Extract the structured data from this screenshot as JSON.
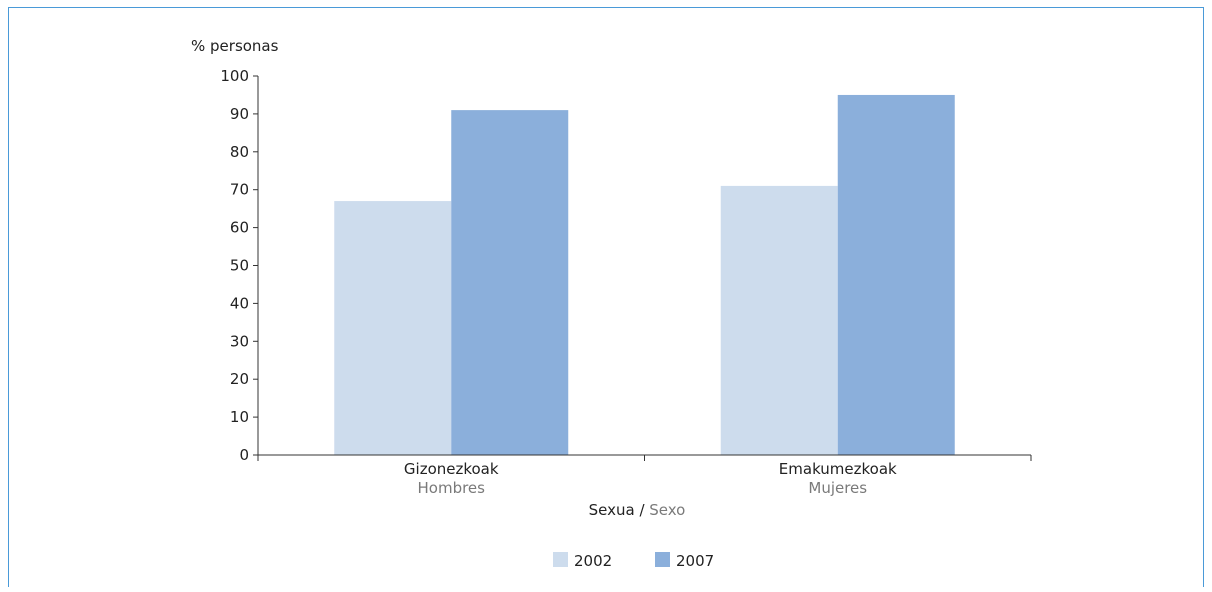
{
  "chart_data": {
    "type": "bar",
    "ylabel": "% personas",
    "ylim": [
      0,
      100
    ],
    "yticks": [
      0,
      10,
      20,
      30,
      40,
      50,
      60,
      70,
      80,
      90,
      100
    ],
    "categories": [
      {
        "primary": "Gizonezkoak",
        "secondary": "Hombres"
      },
      {
        "primary": "Emakumezkoak",
        "secondary": "Mujeres"
      }
    ],
    "xlabel": {
      "primary": "Sexua",
      "separator": " / ",
      "secondary": "Sexo"
    },
    "series": [
      {
        "name": "2002",
        "color": "#cddced",
        "values": [
          67,
          71
        ]
      },
      {
        "name": "2007",
        "color": "#8bafdb",
        "values": [
          91,
          95
        ]
      }
    ],
    "grid": false,
    "legend_position": "bottom-center"
  }
}
